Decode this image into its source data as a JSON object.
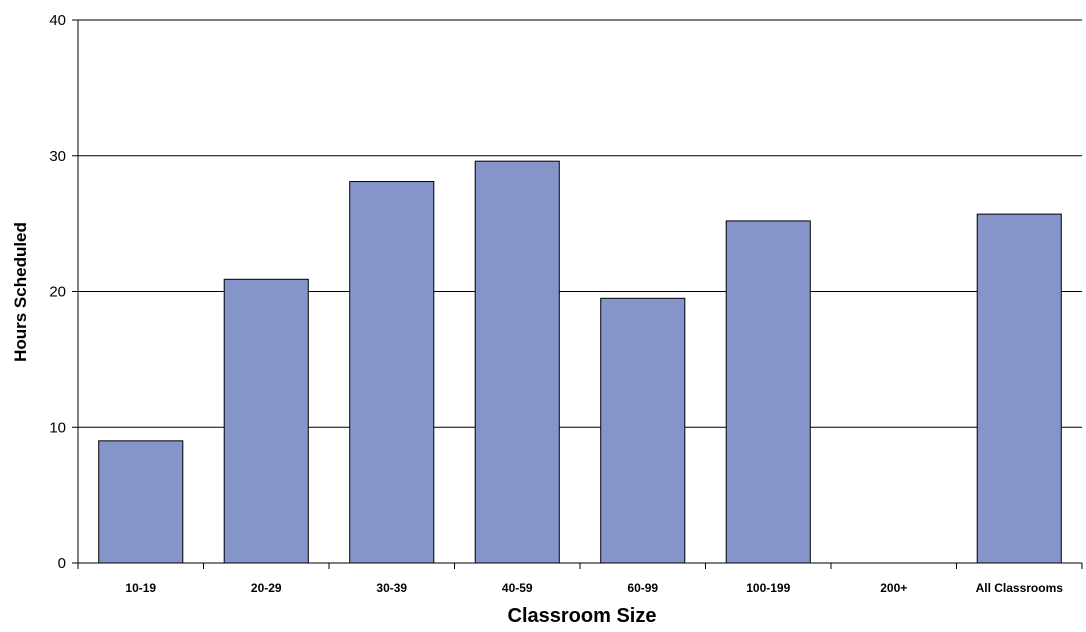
{
  "chart_data": {
    "type": "bar",
    "title": "",
    "xlabel": "Classroom Size",
    "ylabel": "Hours Scheduled",
    "categories": [
      "10-19",
      "20-29",
      "30-39",
      "40-59",
      "60-99",
      "100-199",
      "200+",
      "All Classrooms"
    ],
    "values": [
      9.0,
      20.9,
      28.1,
      29.6,
      19.5,
      25.2,
      null,
      25.7
    ],
    "ylim": [
      0,
      40
    ],
    "yticks": [
      "0",
      "10",
      "20",
      "30",
      "40"
    ],
    "grid": true,
    "legend": "none",
    "colors": {
      "bar_fill": "#8595c9",
      "bar_stroke": "#000000",
      "gridline": "#000000"
    }
  }
}
